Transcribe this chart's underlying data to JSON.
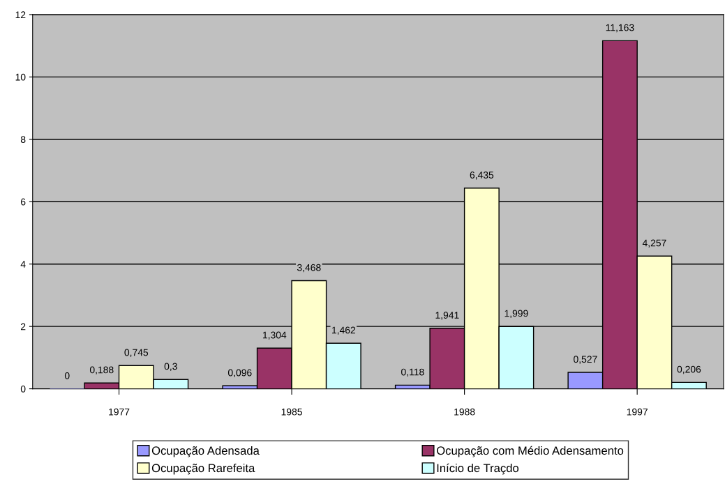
{
  "chart_data": {
    "type": "bar",
    "categories": [
      "1977",
      "1985",
      "1988",
      "1997"
    ],
    "series": [
      {
        "name": "Ocupação Adensada",
        "color": "#9999ff",
        "values": [
          0,
          0.096,
          0.118,
          0.527
        ],
        "value_labels": [
          "0",
          "0,096",
          "0,118",
          "0,527"
        ]
      },
      {
        "name": "Ocupação com Médio Adensamento",
        "color": "#993366",
        "values": [
          0.188,
          1.304,
          1.941,
          11.163
        ],
        "value_labels": [
          "0,188",
          "1,304",
          "1,941",
          "11,163"
        ]
      },
      {
        "name": "Ocupação Rarefeita",
        "color": "#ffffcc",
        "values": [
          0.745,
          3.468,
          6.435,
          4.257
        ],
        "value_labels": [
          "0,745",
          "3,468",
          "6,435",
          "4,257"
        ]
      },
      {
        "name": "Início de Traçdo",
        "color": "#ccffff",
        "values": [
          0.3,
          1.462,
          1.999,
          0.206
        ],
        "value_labels": [
          "0,3",
          "1,462",
          "1,999",
          "0,206"
        ]
      }
    ],
    "ylim": [
      0,
      12
    ],
    "yticks": [
      0,
      2,
      4,
      6,
      8,
      10,
      12
    ],
    "grid": "y",
    "legend": "bottom"
  }
}
